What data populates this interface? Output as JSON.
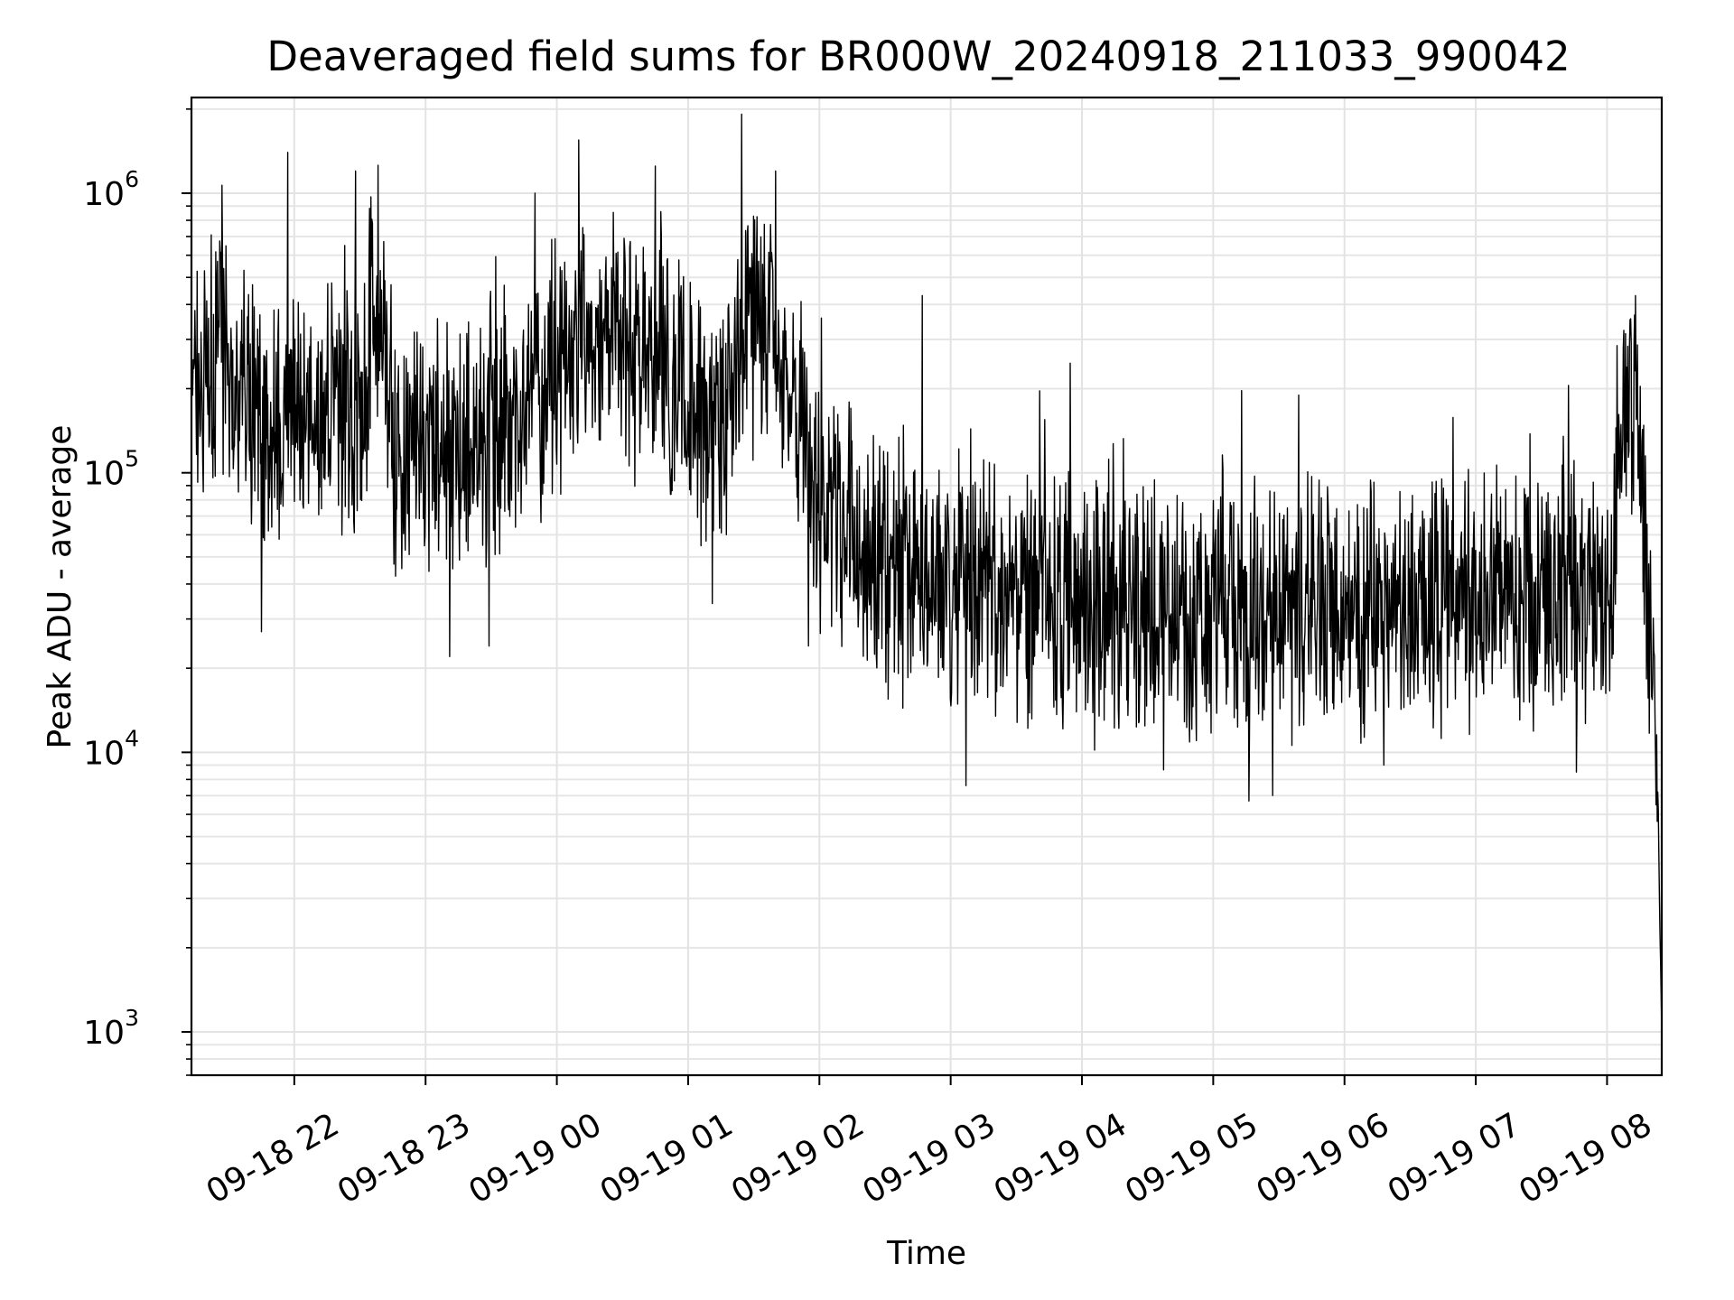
{
  "chart_data": {
    "type": "line",
    "title": "Deaveraged field sums for BR000W_20240918_211033_990042",
    "xlabel": "Time",
    "ylabel": "Peak ADU - average",
    "yscale": "log",
    "ylim": [
      700,
      2200000
    ],
    "xlim": [
      "2024-09-18 21:13",
      "2024-09-19 08:25"
    ],
    "grid": true,
    "line_color": "#000000",
    "x_ticks": [
      {
        "t": "2024-09-18 22:00",
        "label": "09-18 22"
      },
      {
        "t": "2024-09-18 23:00",
        "label": "09-18 23"
      },
      {
        "t": "2024-09-19 00:00",
        "label": "09-19 00"
      },
      {
        "t": "2024-09-19 01:00",
        "label": "09-19 01"
      },
      {
        "t": "2024-09-19 02:00",
        "label": "09-19 02"
      },
      {
        "t": "2024-09-19 03:00",
        "label": "09-19 03"
      },
      {
        "t": "2024-09-19 04:00",
        "label": "09-19 04"
      },
      {
        "t": "2024-09-19 05:00",
        "label": "09-19 05"
      },
      {
        "t": "2024-09-19 06:00",
        "label": "09-19 06"
      },
      {
        "t": "2024-09-19 07:00",
        "label": "09-19 07"
      },
      {
        "t": "2024-09-19 08:00",
        "label": "09-19 08"
      }
    ],
    "y_ticks": [
      {
        "value": 1000,
        "base": "10",
        "exp": "3"
      },
      {
        "value": 10000,
        "base": "10",
        "exp": "4"
      },
      {
        "value": 100000,
        "base": "10",
        "exp": "5"
      },
      {
        "value": 1000000,
        "base": "10",
        "exp": "6"
      }
    ],
    "trend": [
      {
        "t": "2024-09-18 21:13",
        "y": 150000
      },
      {
        "t": "2024-09-18 21:25",
        "y": 300000
      },
      {
        "t": "2024-09-18 21:35",
        "y": 200000
      },
      {
        "t": "2024-09-18 21:50",
        "y": 150000
      },
      {
        "t": "2024-09-18 22:10",
        "y": 180000
      },
      {
        "t": "2024-09-18 22:30",
        "y": 160000
      },
      {
        "t": "2024-09-18 22:38",
        "y": 500000
      },
      {
        "t": "2024-09-18 22:45",
        "y": 130000
      },
      {
        "t": "2024-09-18 23:00",
        "y": 110000
      },
      {
        "t": "2024-09-18 23:20",
        "y": 140000
      },
      {
        "t": "2024-09-18 23:40",
        "y": 160000
      },
      {
        "t": "2024-09-19 00:00",
        "y": 220000
      },
      {
        "t": "2024-09-19 00:15",
        "y": 350000
      },
      {
        "t": "2024-09-19 00:30",
        "y": 300000
      },
      {
        "t": "2024-09-19 01:00",
        "y": 180000
      },
      {
        "t": "2024-09-19 01:15",
        "y": 150000
      },
      {
        "t": "2024-09-19 01:30",
        "y": 400000
      },
      {
        "t": "2024-09-19 01:45",
        "y": 250000
      },
      {
        "t": "2024-09-19 02:00",
        "y": 80000
      },
      {
        "t": "2024-09-19 02:20",
        "y": 55000
      },
      {
        "t": "2024-09-19 03:00",
        "y": 38000
      },
      {
        "t": "2024-09-19 04:00",
        "y": 35000
      },
      {
        "t": "2024-09-19 05:00",
        "y": 31000
      },
      {
        "t": "2024-09-19 06:00",
        "y": 32000
      },
      {
        "t": "2024-09-19 07:00",
        "y": 36000
      },
      {
        "t": "2024-09-19 08:02",
        "y": 40000
      },
      {
        "t": "2024-09-19 08:05",
        "y": 120000
      },
      {
        "t": "2024-09-19 08:12",
        "y": 170000
      },
      {
        "t": "2024-09-19 08:15",
        "y": 120000
      },
      {
        "t": "2024-09-19 08:20",
        "y": 30000
      },
      {
        "t": "2024-09-19 08:23",
        "y": 8000
      },
      {
        "t": "2024-09-19 08:25",
        "y": 1000
      }
    ],
    "spikes": [
      {
        "t": "2024-09-18 21:37",
        "y": 530000
      },
      {
        "t": "2024-09-18 21:57",
        "y": 1400000
      },
      {
        "t": "2024-09-18 22:28",
        "y": 1200000
      },
      {
        "t": "2024-09-18 22:35",
        "y": 970000
      },
      {
        "t": "2024-09-18 23:50",
        "y": 1000000
      },
      {
        "t": "2024-09-19 00:10",
        "y": 1550000
      },
      {
        "t": "2024-09-19 00:45",
        "y": 1250000
      },
      {
        "t": "2024-09-19 01:40",
        "y": 1200000
      },
      {
        "t": "2024-09-19 02:47",
        "y": 430000
      },
      {
        "t": "2024-09-19 03:43",
        "y": 155000
      },
      {
        "t": "2024-09-19 05:45",
        "y": 97000
      },
      {
        "t": "2024-09-19 07:40",
        "y": 135000
      },
      {
        "t": "2024-09-19 08:13",
        "y": 430000
      },
      {
        "t": "2024-09-18 21:45",
        "y": 27000
      },
      {
        "t": "2024-09-18 23:11",
        "y": 22000
      },
      {
        "t": "2024-09-18 23:29",
        "y": 24000
      },
      {
        "t": "2024-09-19 01:55",
        "y": 24000
      },
      {
        "t": "2024-09-19 03:07",
        "y": 7600
      },
      {
        "t": "2024-09-19 06:18",
        "y": 9000
      },
      {
        "t": "2024-09-19 07:46",
        "y": 8500
      }
    ]
  }
}
